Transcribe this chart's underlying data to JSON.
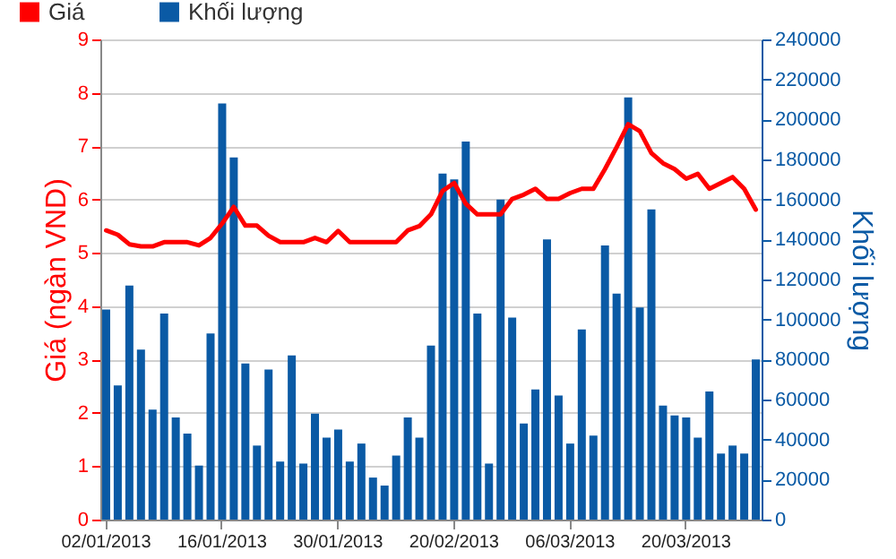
{
  "chart_data": {
    "type": "bar",
    "ylabel": "Giá (ngàn VND)",
    "y2label": "Khối lượng",
    "categories": [
      "02/01/2013",
      null,
      null,
      null,
      null,
      null,
      null,
      null,
      null,
      null,
      "16/01/2013",
      null,
      null,
      null,
      null,
      null,
      null,
      null,
      null,
      null,
      "30/01/2013",
      null,
      null,
      null,
      null,
      null,
      null,
      null,
      null,
      null,
      "20/02/2013",
      null,
      null,
      null,
      null,
      null,
      null,
      null,
      null,
      null,
      "06/03/2013",
      null,
      null,
      null,
      null,
      null,
      null,
      null,
      null,
      null,
      "20/03/2013",
      null,
      null,
      null,
      null,
      null,
      null
    ],
    "series": [
      {
        "name": "Giá",
        "type": "line",
        "color": "#ff0000",
        "values": [
          5.42,
          5.34,
          5.16,
          5.12,
          5.12,
          5.2,
          5.2,
          5.2,
          5.14,
          5.28,
          5.55,
          5.86,
          5.51,
          5.51,
          5.32,
          5.2,
          5.2,
          5.2,
          5.28,
          5.2,
          5.41,
          5.2,
          5.2,
          5.2,
          5.2,
          5.2,
          5.42,
          5.5,
          5.72,
          6.16,
          6.31,
          5.92,
          5.72,
          5.72,
          5.72,
          6.01,
          6.09,
          6.2,
          6.01,
          6.01,
          6.12,
          6.2,
          6.2,
          6.57,
          6.98,
          7.41,
          7.28,
          6.87,
          6.68,
          6.57,
          6.39,
          6.48,
          6.2,
          6.31,
          6.42,
          6.2,
          5.81
        ]
      },
      {
        "name": "Khối lượng",
        "axis": "y2",
        "color": "#0a5aa5",
        "values": [
          105000,
          67000,
          117000,
          85000,
          55000,
          103000,
          51000,
          43000,
          27000,
          93000,
          208000,
          181000,
          78000,
          37000,
          75000,
          29000,
          82000,
          28000,
          53000,
          41000,
          45000,
          29000,
          38000,
          21000,
          17000,
          32000,
          51000,
          41000,
          87000,
          173000,
          170000,
          189000,
          103000,
          28000,
          160000,
          101000,
          48000,
          65000,
          140000,
          62000,
          38000,
          95000,
          42000,
          137000,
          113000,
          211000,
          106000,
          155000,
          57000,
          52000,
          51000,
          41000,
          64000,
          33000,
          37000,
          33000,
          80000
        ]
      }
    ],
    "ylim": [
      0,
      9
    ],
    "yticks": [
      0,
      1,
      2,
      3,
      4,
      5,
      6,
      7,
      8,
      9
    ],
    "y2lim": [
      0,
      240000
    ],
    "y2ticks": [
      0,
      20000,
      40000,
      60000,
      80000,
      100000,
      120000,
      140000,
      160000,
      180000,
      200000,
      220000,
      240000
    ],
    "grid": "y",
    "legend": "top left"
  }
}
